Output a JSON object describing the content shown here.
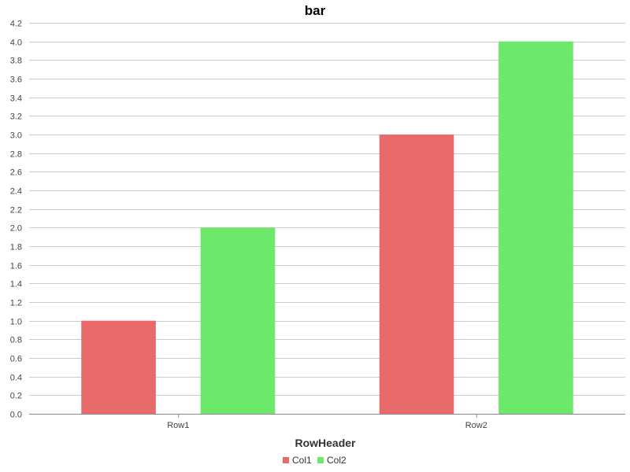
{
  "chart_data": {
    "type": "bar",
    "title": "bar",
    "xlabel": "RowHeader",
    "ylabel": "",
    "categories": [
      "Row1",
      "Row2"
    ],
    "series": [
      {
        "name": "Col1",
        "values": [
          1.0,
          3.0
        ],
        "color": "#e86a6a"
      },
      {
        "name": "Col2",
        "values": [
          2.0,
          4.0
        ],
        "color": "#6ce86a"
      }
    ],
    "ylim": [
      0,
      4.2
    ],
    "y_ticks": [
      "0.0",
      "0.2",
      "0.4",
      "0.6",
      "0.8",
      "1.0",
      "1.2",
      "1.4",
      "1.6",
      "1.8",
      "2.0",
      "2.2",
      "2.4",
      "2.6",
      "2.8",
      "3.0",
      "3.2",
      "3.4",
      "3.6",
      "3.8",
      "4.0",
      "4.2"
    ],
    "grid": true,
    "legend_position": "bottom-center"
  }
}
